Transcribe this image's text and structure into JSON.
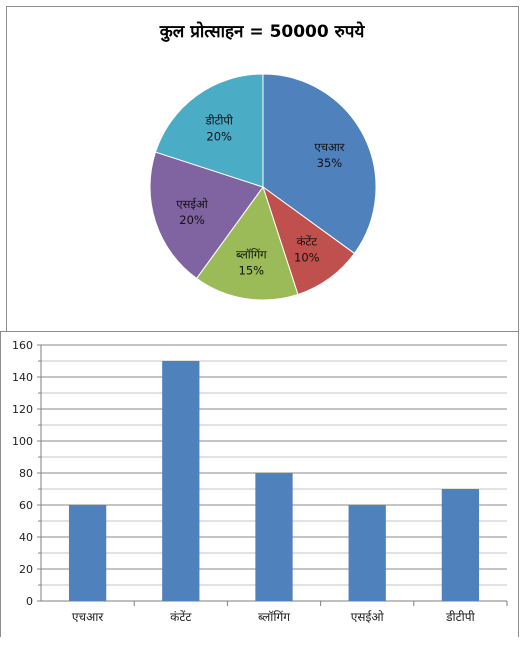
{
  "chart_data": [
    {
      "type": "pie",
      "title": "कुल प्रोत्साहन = 50000 रुपये",
      "slices": [
        {
          "label": "एचआर",
          "value": 35,
          "value_label": "35%",
          "color": "#4F81BD"
        },
        {
          "label": "कंटेंट",
          "value": 10,
          "value_label": "10%",
          "color": "#C0504D"
        },
        {
          "label": "ब्लॉगिंग",
          "value": 15,
          "value_label": "15%",
          "color": "#9BBB59"
        },
        {
          "label": "एसईओ",
          "value": 20,
          "value_label": "20%",
          "color": "#8064A2"
        },
        {
          "label": "डीटीपी",
          "value": 20,
          "value_label": "20%",
          "color": "#4BACC6"
        }
      ]
    },
    {
      "type": "bar",
      "categories": [
        "एचआर",
        "कंटेंट",
        "ब्लॉगिंग",
        "एसईओ",
        "डीटीपी"
      ],
      "values": [
        60,
        150,
        80,
        60,
        70
      ],
      "ylim": [
        0,
        160
      ],
      "yticks": [
        0,
        20,
        40,
        60,
        80,
        100,
        120,
        140,
        160
      ],
      "bar_color": "#4F81BD",
      "grid": true
    }
  ]
}
